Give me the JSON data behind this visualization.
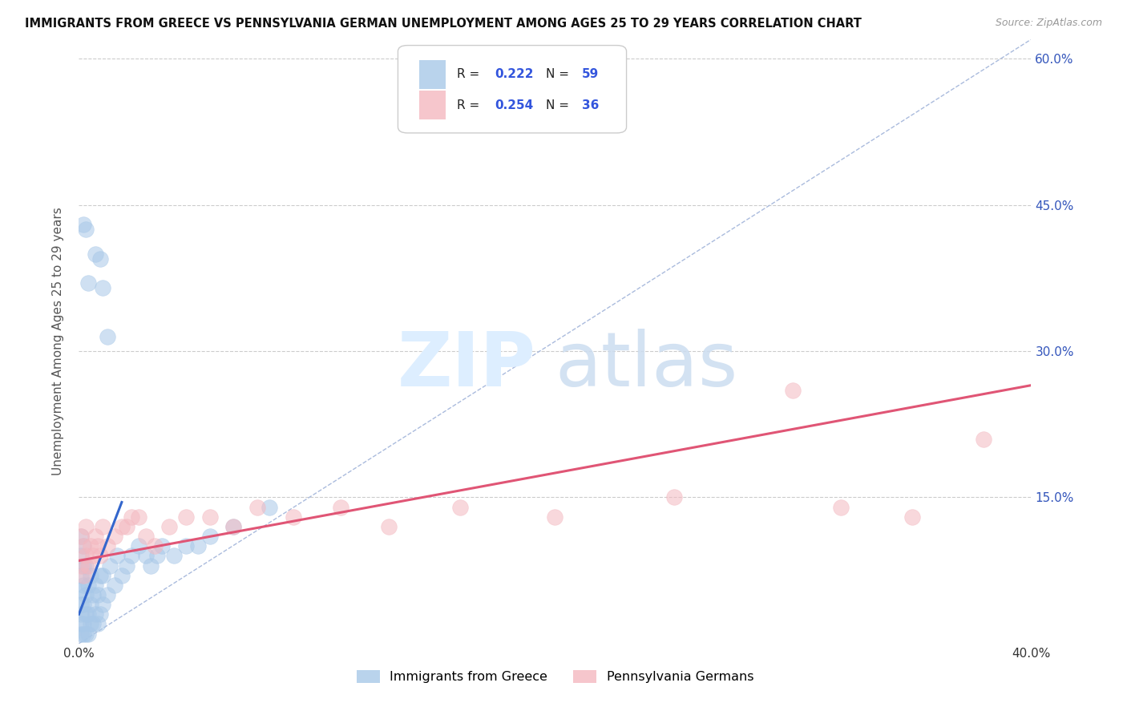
{
  "title": "IMMIGRANTS FROM GREECE VS PENNSYLVANIA GERMAN UNEMPLOYMENT AMONG AGES 25 TO 29 YEARS CORRELATION CHART",
  "source": "Source: ZipAtlas.com",
  "ylabel": "Unemployment Among Ages 25 to 29 years",
  "xlim": [
    0.0,
    0.4
  ],
  "ylim": [
    0.0,
    0.62
  ],
  "yticks": [
    0.0,
    0.15,
    0.3,
    0.45,
    0.6
  ],
  "blue_color": "#a8c8e8",
  "pink_color": "#f4b8c0",
  "blue_line_color": "#3366cc",
  "pink_line_color": "#e05575",
  "diag_color": "#aabbdd",
  "watermark_zip": "ZIP",
  "watermark_atlas": "atlas",
  "legend_r1": "0.222",
  "legend_n1": "59",
  "legend_r2": "0.254",
  "legend_n2": "36",
  "legend_label_greece": "Immigrants from Greece",
  "legend_label_pa": "Pennsylvania Germans",
  "blue_scatter_x": [
    0.001,
    0.001,
    0.001,
    0.001,
    0.001,
    0.001,
    0.001,
    0.001,
    0.002,
    0.002,
    0.002,
    0.002,
    0.002,
    0.002,
    0.003,
    0.003,
    0.003,
    0.003,
    0.004,
    0.004,
    0.004,
    0.005,
    0.005,
    0.005,
    0.006,
    0.006,
    0.007,
    0.007,
    0.008,
    0.008,
    0.009,
    0.009,
    0.01,
    0.01,
    0.012,
    0.013,
    0.015,
    0.016,
    0.018,
    0.02,
    0.022,
    0.025,
    0.028,
    0.03,
    0.033,
    0.035,
    0.04,
    0.045,
    0.05,
    0.055,
    0.065,
    0.08,
    0.01,
    0.012,
    0.007,
    0.009,
    0.003,
    0.004,
    0.002
  ],
  "blue_scatter_y": [
    0.01,
    0.02,
    0.03,
    0.04,
    0.055,
    0.07,
    0.09,
    0.11,
    0.01,
    0.02,
    0.04,
    0.06,
    0.08,
    0.1,
    0.01,
    0.03,
    0.05,
    0.08,
    0.01,
    0.03,
    0.06,
    0.02,
    0.04,
    0.07,
    0.02,
    0.05,
    0.03,
    0.06,
    0.02,
    0.05,
    0.03,
    0.07,
    0.04,
    0.07,
    0.05,
    0.08,
    0.06,
    0.09,
    0.07,
    0.08,
    0.09,
    0.1,
    0.09,
    0.08,
    0.09,
    0.1,
    0.09,
    0.1,
    0.1,
    0.11,
    0.12,
    0.14,
    0.365,
    0.315,
    0.4,
    0.395,
    0.425,
    0.37,
    0.43
  ],
  "pink_scatter_x": [
    0.001,
    0.001,
    0.002,
    0.002,
    0.003,
    0.003,
    0.004,
    0.005,
    0.006,
    0.007,
    0.008,
    0.009,
    0.01,
    0.012,
    0.015,
    0.018,
    0.02,
    0.022,
    0.025,
    0.028,
    0.032,
    0.038,
    0.045,
    0.055,
    0.065,
    0.075,
    0.09,
    0.11,
    0.13,
    0.16,
    0.2,
    0.25,
    0.3,
    0.32,
    0.35,
    0.38
  ],
  "pink_scatter_y": [
    0.08,
    0.11,
    0.07,
    0.1,
    0.09,
    0.12,
    0.08,
    0.1,
    0.09,
    0.11,
    0.1,
    0.09,
    0.12,
    0.1,
    0.11,
    0.12,
    0.12,
    0.13,
    0.13,
    0.11,
    0.1,
    0.12,
    0.13,
    0.13,
    0.12,
    0.14,
    0.13,
    0.14,
    0.12,
    0.14,
    0.13,
    0.15,
    0.26,
    0.14,
    0.13,
    0.21
  ],
  "blue_trend_x0": 0.0,
  "blue_trend_x1": 0.018,
  "blue_trend_y0": 0.03,
  "blue_trend_y1": 0.145,
  "pink_trend_x0": 0.0,
  "pink_trend_x1": 0.4,
  "pink_trend_y0": 0.085,
  "pink_trend_y1": 0.265
}
